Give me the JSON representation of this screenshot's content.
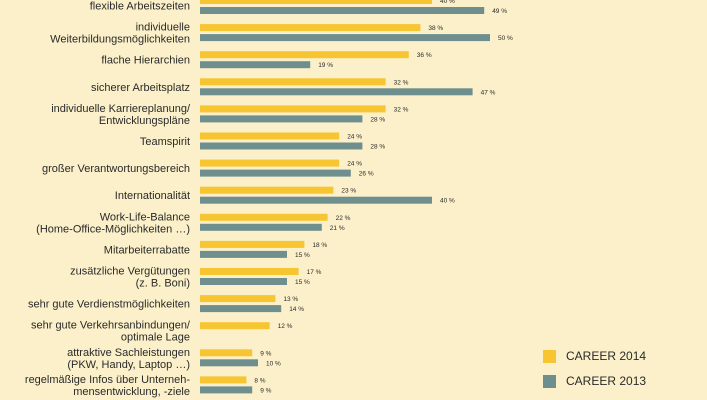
{
  "chart_data": {
    "type": "bar",
    "orientation": "horizontal",
    "categories": [
      [
        "flexible Arbeitszeiten"
      ],
      [
        "individuelle",
        "Weiterbildungsmöglichkeiten"
      ],
      [
        "flache Hierarchien"
      ],
      [
        "sicherer Arbeitsplatz"
      ],
      [
        "individuelle Karriereplanung/",
        "Entwicklungspläne"
      ],
      [
        "Teamspirit"
      ],
      [
        "großer Verantwortungsbereich"
      ],
      [
        "Internationalität"
      ],
      [
        "Work-Life-Balance",
        "(Home-Office-Möglichkeiten …)"
      ],
      [
        "Mitarbeiterrabatte"
      ],
      [
        "zusätzliche Vergütungen",
        "(z. B. Boni)"
      ],
      [
        "sehr gute Verdienstmöglichkeiten"
      ],
      [
        "sehr gute Verkehrsanbindungen/",
        "optimale Lage"
      ],
      [
        "attraktive Sachleistungen",
        "(PKW, Handy, Laptop …)"
      ],
      [
        "regelmäßige Infos über Unterneh-",
        "mensentwicklung, -ziele"
      ]
    ],
    "series": [
      {
        "name": "CAREER 2014",
        "color": "#f7c531",
        "values": [
          40,
          38,
          36,
          32,
          32,
          24,
          24,
          23,
          22,
          18,
          17,
          13,
          12,
          9,
          8
        ],
        "labels": [
          "40 %",
          "38 %",
          "36 %",
          "32 %",
          "32 %",
          "24 %",
          "24 %",
          "23 %",
          "22 %",
          "18 %",
          "17 %",
          "13 %",
          "12 %",
          "9 %",
          "8 %"
        ]
      },
      {
        "name": "CAREER 2013",
        "color": "#6f8f8f",
        "values": [
          49,
          50,
          19,
          47,
          28,
          28,
          26,
          40,
          21,
          15,
          15,
          14,
          null,
          10,
          9
        ],
        "labels": [
          "49 %",
          "50 %",
          "19 %",
          "47 %",
          "28 %",
          "28 %",
          "26 %",
          "40 %",
          "21 %",
          "15 %",
          "15 %",
          "14 %",
          "",
          "10 %",
          "9 %"
        ]
      }
    ],
    "unit": "%",
    "grid": false
  }
}
